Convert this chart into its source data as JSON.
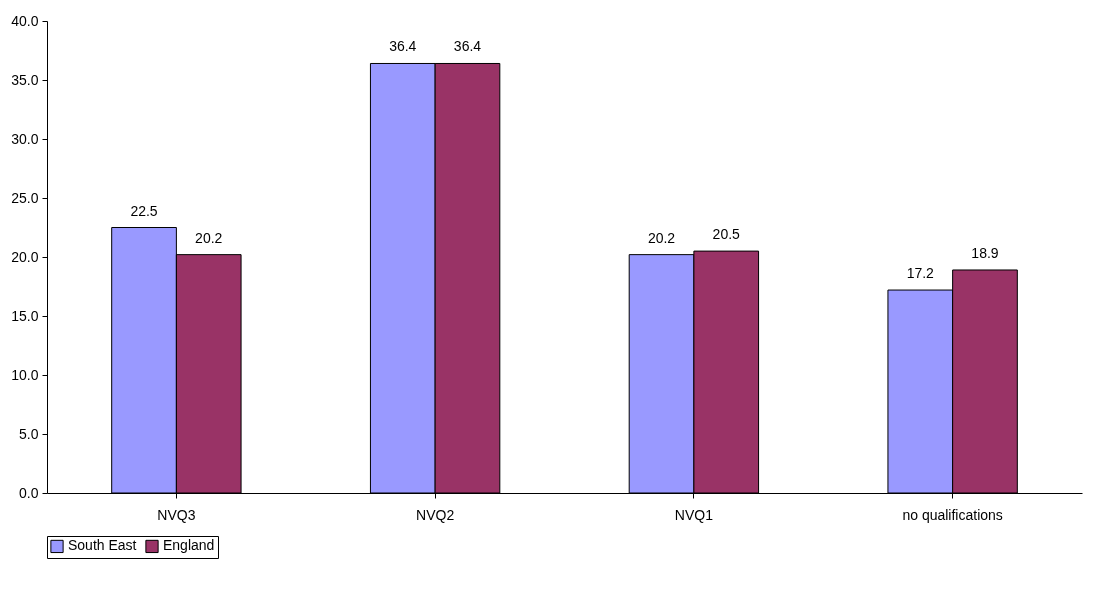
{
  "chart_data": {
    "type": "bar",
    "categories": [
      "NVQ3",
      "NVQ2",
      "NVQ1",
      "no qualifications"
    ],
    "series": [
      {
        "name": "South East",
        "color": "#9999ff",
        "values": [
          22.5,
          36.4,
          20.2,
          17.2
        ]
      },
      {
        "name": "England",
        "color": "#993366",
        "values": [
          20.2,
          36.4,
          20.5,
          18.9
        ]
      }
    ],
    "ylim": [
      0,
      40
    ],
    "yticks": [
      {
        "value": 0,
        "label": "0.0"
      },
      {
        "value": 5,
        "label": "5.0"
      },
      {
        "value": 10,
        "label": "10.0"
      },
      {
        "value": 15,
        "label": "15.0"
      },
      {
        "value": 20,
        "label": "20.0"
      },
      {
        "value": 25,
        "label": "25.0"
      },
      {
        "value": 30,
        "label": "30.0"
      },
      {
        "value": 35,
        "label": "35.0"
      },
      {
        "value": 40,
        "label": "40.0"
      }
    ],
    "grid": false,
    "legend": "bottom",
    "data_labels": true
  }
}
